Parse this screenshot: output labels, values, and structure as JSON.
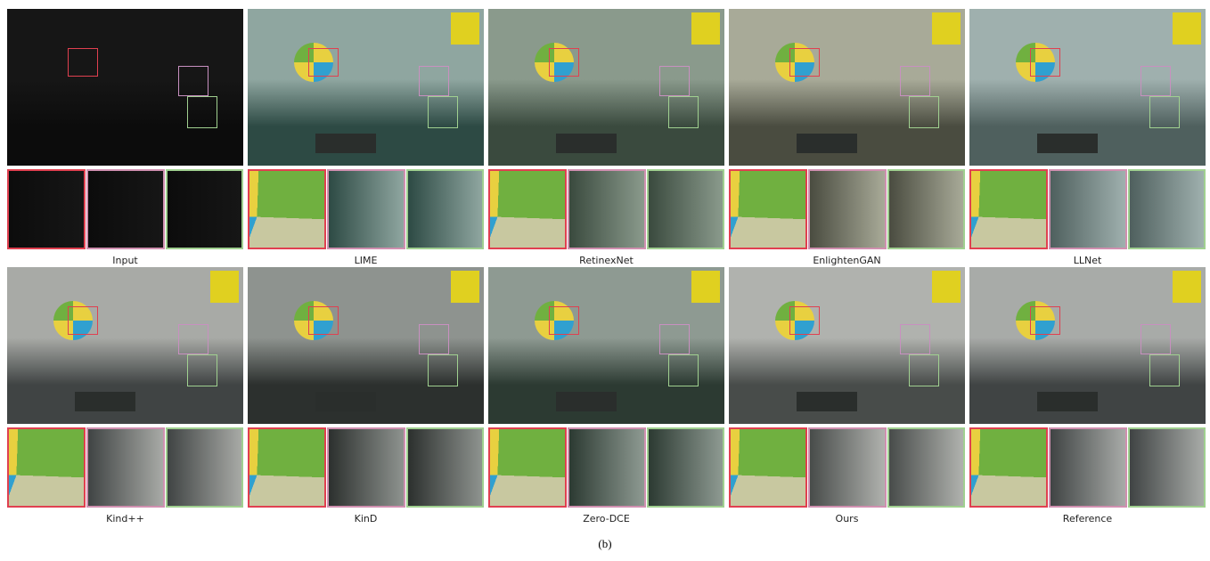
{
  "panels": [
    {
      "label": "Input"
    },
    {
      "label": "LIME"
    },
    {
      "label": "RetinexNet"
    },
    {
      "label": "EnlightenGAN"
    },
    {
      "label": "LLNet"
    },
    {
      "label": "Kind++"
    },
    {
      "label": "KinD"
    },
    {
      "label": "Zero-DCE"
    },
    {
      "label": "Ours"
    },
    {
      "label": "Reference"
    }
  ],
  "caption": "(b)"
}
